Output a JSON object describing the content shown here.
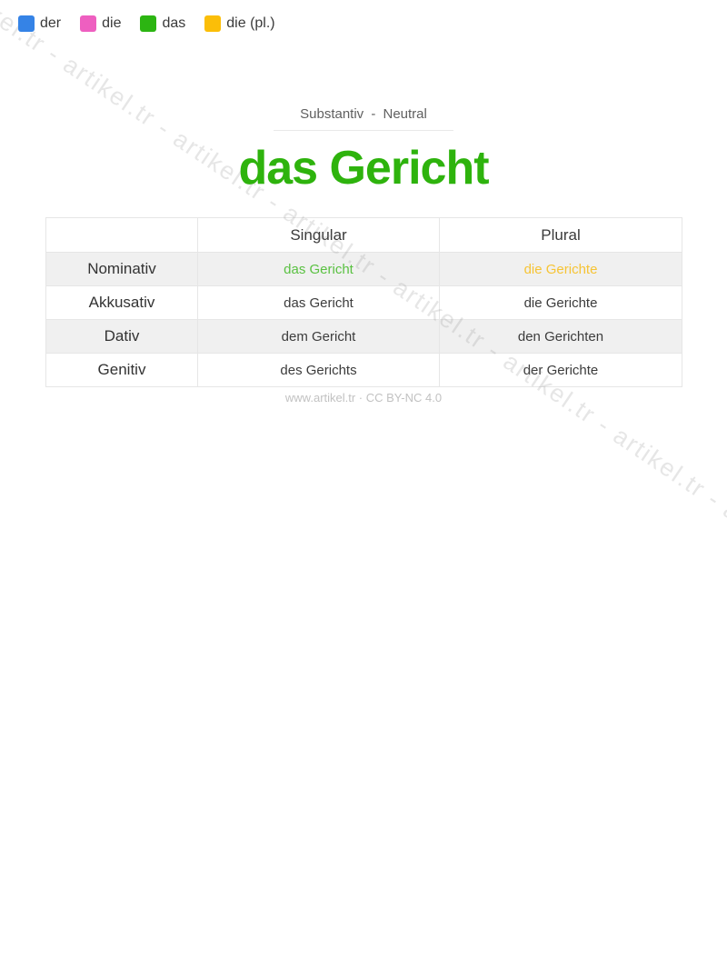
{
  "legend": {
    "items": [
      {
        "label": "der",
        "color": "#3583e6"
      },
      {
        "label": "die",
        "color": "#ee5fc0"
      },
      {
        "label": "das",
        "color": "#2cb512"
      },
      {
        "label": "die (pl.)",
        "color": "#fbbe08"
      }
    ]
  },
  "header": {
    "subtitle": "Substantiv - Neutral",
    "title": "das Gericht",
    "title_color": "#2eb30d"
  },
  "table": {
    "col_singular": "Singular",
    "col_plural": "Plural",
    "rows": [
      {
        "case": "Nominativ",
        "singular": "das Gericht",
        "plural": "die Gerichte",
        "singular_color": "#5ac142",
        "plural_color": "#f6c435"
      },
      {
        "case": "Akkusativ",
        "singular": "das Gericht",
        "plural": "die Gerichte"
      },
      {
        "case": "Dativ",
        "singular": "dem Gericht",
        "plural": "den Gerichten"
      },
      {
        "case": "Genitiv",
        "singular": "des Gerichts",
        "plural": "der Gerichte"
      }
    ]
  },
  "footer": {
    "text": "www.artikel.tr · CC BY-NC 4.0"
  },
  "watermark": {
    "text": "artikel.tr - artikel.tr - artikel.tr - artikel.tr - artikel.tr - artikel.tr - artikel.tr - artikel.tr - artikel.tr - artikel.tr - artikel.tr - artikel.tr - artikel.tr - artikel.tr"
  }
}
